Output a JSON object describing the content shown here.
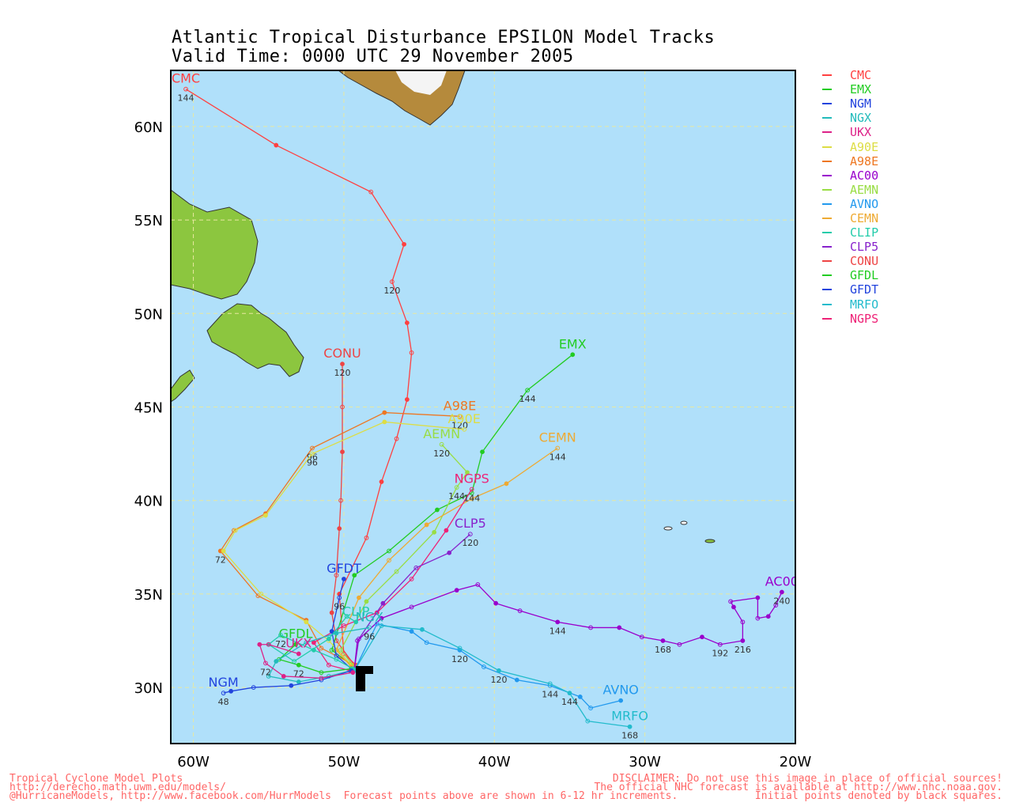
{
  "title": {
    "line1": "Atlantic Tropical Disturbance EPSILON Model Tracks",
    "line2": "Valid Time: 0000 UTC 29 November 2005"
  },
  "axes": {
    "lat_labels": [
      "60N",
      "55N",
      "50N",
      "45N",
      "40N",
      "35N",
      "30N"
    ],
    "lon_labels": [
      "60W",
      "50W",
      "40W",
      "30W",
      "20W"
    ]
  },
  "colors": {
    "ocean": "#b0e0fa",
    "land": "#8cc63f",
    "grid": "#e8e8a0"
  },
  "legend": [
    {
      "name": "CMC",
      "color": "#ff4040"
    },
    {
      "name": "EMX",
      "color": "#22cc22"
    },
    {
      "name": "NGM",
      "color": "#2244dd"
    },
    {
      "name": "NGX",
      "color": "#22bbbb"
    },
    {
      "name": "UKX",
      "color": "#dd2288"
    },
    {
      "name": "A90E",
      "color": "#dddd44"
    },
    {
      "name": "A98E",
      "color": "#ee7722"
    },
    {
      "name": "AC00",
      "color": "#9900cc"
    },
    {
      "name": "AEMN",
      "color": "#99dd44"
    },
    {
      "name": "AVNO",
      "color": "#2299ee"
    },
    {
      "name": "CEMN",
      "color": "#eeaa33"
    },
    {
      "name": "CLIP",
      "color": "#22ccaa"
    },
    {
      "name": "CLP5",
      "color": "#8822cc"
    },
    {
      "name": "CONU",
      "color": "#ee4444"
    },
    {
      "name": "GFDL",
      "color": "#22cc22"
    },
    {
      "name": "GFDT",
      "color": "#2244dd"
    },
    {
      "name": "MRFO",
      "color": "#22bbcc"
    },
    {
      "name": "NGPS",
      "color": "#ee2277"
    }
  ],
  "chart_data": {
    "type": "scatter",
    "xlabel": "",
    "ylabel": "",
    "xlim": [
      -61.5,
      -20
    ],
    "ylim": [
      27,
      63
    ],
    "series": [
      {
        "name": "CMC",
        "color": "#ff4040",
        "points": [
          [
            -49.2,
            31.2
          ],
          [
            -50,
            31.8
          ],
          [
            -50.3,
            35
          ],
          [
            -48.5,
            38
          ],
          [
            -47.5,
            41
          ],
          [
            -46.5,
            43.3
          ],
          [
            -45.8,
            45.4
          ],
          [
            -45.5,
            47.9
          ],
          [
            -45.8,
            49.5
          ],
          [
            -46.8,
            51.7
          ],
          [
            -46,
            53.7
          ],
          [
            -48.2,
            56.5
          ],
          [
            -54.5,
            59
          ],
          [
            -60.5,
            62
          ]
        ],
        "label": "CMC",
        "hours": [
          {
            "idx": 9,
            "h": "120"
          },
          {
            "idx": 13,
            "h": "144"
          }
        ]
      },
      {
        "name": "CONU",
        "color": "#ee4444",
        "points": [
          [
            -49.3,
            31.2
          ],
          [
            -50.5,
            32.5
          ],
          [
            -50.8,
            34
          ],
          [
            -50.5,
            36
          ],
          [
            -50.3,
            38.5
          ],
          [
            -50.2,
            40
          ],
          [
            -50.1,
            42.6
          ],
          [
            -50.1,
            45
          ],
          [
            -50.1,
            47.3
          ]
        ],
        "label": "CONU",
        "hours": [
          {
            "idx": 8,
            "h": "120"
          }
        ]
      },
      {
        "name": "EMX",
        "color": "#22cc22",
        "points": [
          [
            -49.5,
            31.2
          ],
          [
            -50.8,
            32
          ],
          [
            -49.3,
            36
          ],
          [
            -47,
            37.3
          ],
          [
            -43.8,
            39.5
          ],
          [
            -41.5,
            40.4
          ],
          [
            -40.8,
            42.6
          ],
          [
            -37.8,
            45.9
          ],
          [
            -34.8,
            47.8
          ]
        ],
        "label": "EMX",
        "hours": [
          {
            "idx": 7,
            "h": "144"
          }
        ]
      },
      {
        "name": "A98E",
        "color": "#ee7722",
        "points": [
          [
            -49.3,
            31.2
          ],
          [
            -51.5,
            32.1
          ],
          [
            -52.5,
            33.6
          ],
          [
            -55.7,
            34.9
          ],
          [
            -58.2,
            37.3
          ],
          [
            -57.3,
            38.4
          ],
          [
            -55.2,
            39.3
          ],
          [
            -52.1,
            42.8
          ],
          [
            -47.3,
            44.7
          ],
          [
            -42.3,
            44.5
          ]
        ],
        "label": "A98E",
        "hours": [
          {
            "idx": 4,
            "h": "72"
          },
          {
            "idx": 7,
            "h": "96"
          },
          {
            "idx": 9,
            "h": "120"
          }
        ]
      },
      {
        "name": "A90E",
        "color": "#dddd44",
        "points": [
          [
            -49.5,
            31.2
          ],
          [
            -51,
            32.5
          ],
          [
            -52.5,
            33.5
          ],
          [
            -55.5,
            35
          ],
          [
            -58,
            37.3
          ],
          [
            -57.2,
            38.4
          ],
          [
            -55.2,
            39.2
          ],
          [
            -52.1,
            42.5
          ],
          [
            -47.3,
            44.2
          ],
          [
            -42,
            43.8
          ]
        ],
        "label": "A90E",
        "hours": [
          {
            "idx": 7,
            "h": "96"
          }
        ]
      },
      {
        "name": "AEMN",
        "color": "#99dd44",
        "points": [
          [
            -49.2,
            31
          ],
          [
            -50.2,
            32
          ],
          [
            -48.5,
            34.6
          ],
          [
            -46.5,
            36.2
          ],
          [
            -44,
            38.3
          ],
          [
            -42.5,
            40.7
          ],
          [
            -41.8,
            41.5
          ],
          [
            -43.5,
            43
          ]
        ],
        "label": "AEMN",
        "hours": [
          {
            "idx": 5,
            "h": "144"
          },
          {
            "idx": 7,
            "h": "120"
          }
        ]
      },
      {
        "name": "CEMN",
        "color": "#eeaa33",
        "points": [
          [
            -49.5,
            31.1
          ],
          [
            -50.5,
            32
          ],
          [
            -49,
            34.8
          ],
          [
            -47,
            36.8
          ],
          [
            -44.5,
            38.7
          ],
          [
            -41.5,
            40.1
          ],
          [
            -39.2,
            40.9
          ],
          [
            -35.8,
            42.8
          ]
        ],
        "label": "CEMN",
        "hours": [
          {
            "idx": 7,
            "h": "144"
          }
        ]
      },
      {
        "name": "NGPS",
        "color": "#ee2277",
        "points": [
          [
            -49.6,
            30.9
          ],
          [
            -51,
            31.2
          ],
          [
            -52,
            32.4
          ],
          [
            -50,
            33.3
          ],
          [
            -47.8,
            34
          ],
          [
            -45.5,
            35.8
          ],
          [
            -43.2,
            38.4
          ],
          [
            -41.5,
            40.6
          ]
        ],
        "label": "NGPS",
        "hours": [
          {
            "idx": 7,
            "h": "144"
          }
        ]
      },
      {
        "name": "CLP5",
        "color": "#8822cc",
        "points": [
          [
            -49.3,
            31
          ],
          [
            -49,
            32.6
          ],
          [
            -47.4,
            34.5
          ],
          [
            -45.2,
            36.4
          ],
          [
            -43,
            37.2
          ],
          [
            -41.6,
            38.2
          ]
        ],
        "label": "CLP5",
        "hours": [
          {
            "idx": 5,
            "h": "120"
          }
        ]
      },
      {
        "name": "AC00",
        "color": "#9900cc",
        "points": [
          [
            -49.3,
            31
          ],
          [
            -49.1,
            32.5
          ],
          [
            -47.5,
            33.7
          ],
          [
            -45.5,
            34.3
          ],
          [
            -42.5,
            35.2
          ],
          [
            -41.1,
            35.5
          ],
          [
            -39.9,
            34.5
          ],
          [
            -38.3,
            34.1
          ],
          [
            -35.8,
            33.5
          ],
          [
            -33.6,
            33.2
          ],
          [
            -31.7,
            33.2
          ],
          [
            -30.2,
            32.7
          ],
          [
            -28.8,
            32.5
          ],
          [
            -27.7,
            32.3
          ],
          [
            -26.2,
            32.7
          ],
          [
            -25,
            32.3
          ],
          [
            -23.5,
            32.5
          ],
          [
            -23.5,
            33.5
          ],
          [
            -24.1,
            34.3
          ],
          [
            -24.3,
            34.6
          ],
          [
            -22.5,
            34.8
          ],
          [
            -22.5,
            33.7
          ],
          [
            -21.8,
            33.8
          ],
          [
            -21.3,
            34.4
          ],
          [
            -20.9,
            35.1
          ]
        ],
        "label": "AC00",
        "hours": [
          {
            "idx": 8,
            "h": "144"
          },
          {
            "idx": 12,
            "h": "168"
          },
          {
            "idx": 15,
            "h": "192"
          },
          {
            "idx": 16,
            "h": "216"
          },
          {
            "idx": 24,
            "h": "240"
          }
        ]
      },
      {
        "name": "AVNO",
        "color": "#2299ee",
        "points": [
          [
            -49.3,
            30.9
          ],
          [
            -47.8,
            33.4
          ],
          [
            -45.5,
            33
          ],
          [
            -44.5,
            32.4
          ],
          [
            -42.3,
            32
          ],
          [
            -40.7,
            31.1
          ],
          [
            -38.5,
            30.4
          ],
          [
            -36.3,
            30.1
          ],
          [
            -34.3,
            29.5
          ],
          [
            -33.6,
            28.9
          ],
          [
            -31.6,
            29.3
          ]
        ],
        "label": "AVNO",
        "hours": [
          {
            "idx": 4,
            "h": "120"
          },
          {
            "idx": 7,
            "h": "144"
          }
        ]
      },
      {
        "name": "MRFO",
        "color": "#22bbcc",
        "points": [
          [
            -49.3,
            30.9
          ],
          [
            -47.5,
            33.3
          ],
          [
            -44.8,
            33.1
          ],
          [
            -42.3,
            32.1
          ],
          [
            -39.7,
            30.9
          ],
          [
            -36.3,
            30.2
          ],
          [
            -35,
            29.7
          ],
          [
            -33.8,
            28.2
          ],
          [
            -31,
            27.9
          ]
        ],
        "label": "MRFO",
        "hours": [
          {
            "idx": 4,
            "h": "120"
          },
          {
            "idx": 6,
            "h": "144"
          },
          {
            "idx": 8,
            "h": "168"
          }
        ]
      },
      {
        "name": "GFDT",
        "color": "#2244dd",
        "points": [
          [
            -49.5,
            31
          ],
          [
            -50.5,
            31.7
          ],
          [
            -50.8,
            33
          ],
          [
            -50.3,
            34.8
          ],
          [
            -50,
            35.8
          ]
        ],
        "label": "GFDT",
        "hours": [
          {
            "idx": 3,
            "h": "96"
          }
        ]
      },
      {
        "name": "GFDL",
        "color": "#22cc22",
        "points": [
          [
            -49.5,
            31
          ],
          [
            -51.5,
            30.8
          ],
          [
            -53,
            31.2
          ],
          [
            -54.3,
            31.5
          ],
          [
            -53.2,
            32.3
          ]
        ],
        "label": "GFDL",
        "hours": [
          {
            "idx": 2,
            "h": "72"
          }
        ]
      },
      {
        "name": "CLIP",
        "color": "#22ccaa",
        "points": [
          [
            -49.4,
            31
          ],
          [
            -50.5,
            31.5
          ],
          [
            -52,
            32
          ],
          [
            -54.2,
            32.8
          ],
          [
            -55,
            32.3
          ],
          [
            -53.3,
            31.4
          ],
          [
            -51,
            32.6
          ],
          [
            -49.8,
            33.8
          ],
          [
            -49.2,
            33.5
          ]
        ],
        "label": "CLIP",
        "hours": [
          {
            "idx": 3,
            "h": "72"
          }
        ]
      },
      {
        "name": "NGX",
        "color": "#22bbbb",
        "points": [
          [
            -49.5,
            30.9
          ],
          [
            -51,
            30.6
          ],
          [
            -53,
            30.3
          ],
          [
            -55,
            30.6
          ],
          [
            -54.5,
            31.4
          ],
          [
            -52.5,
            32.4
          ],
          [
            -50.5,
            32.9
          ],
          [
            -48.3,
            33.2
          ]
        ],
        "label": "NGX",
        "hours": [
          {
            "idx": 7,
            "h": "96"
          }
        ]
      },
      {
        "name": "NGM",
        "color": "#2244dd",
        "points": [
          [
            -49.5,
            30.9
          ],
          [
            -51.5,
            30.4
          ],
          [
            -53.5,
            30.1
          ],
          [
            -56,
            30
          ],
          [
            -57.5,
            29.8
          ],
          [
            -58,
            29.7
          ]
        ],
        "label": "NGM",
        "hours": [
          {
            "idx": 5,
            "h": "48"
          }
        ]
      },
      {
        "name": "UKX",
        "color": "#dd2288",
        "points": [
          [
            -49.4,
            30.8
          ],
          [
            -51.5,
            30.5
          ],
          [
            -54,
            30.6
          ],
          [
            -55.2,
            31.3
          ],
          [
            -55.6,
            32.3
          ],
          [
            -55,
            32.3
          ],
          [
            -53,
            31.8
          ]
        ],
        "label": "UKX",
        "hours": [
          {
            "idx": 3,
            "h": "72"
          }
        ]
      }
    ]
  }
}
